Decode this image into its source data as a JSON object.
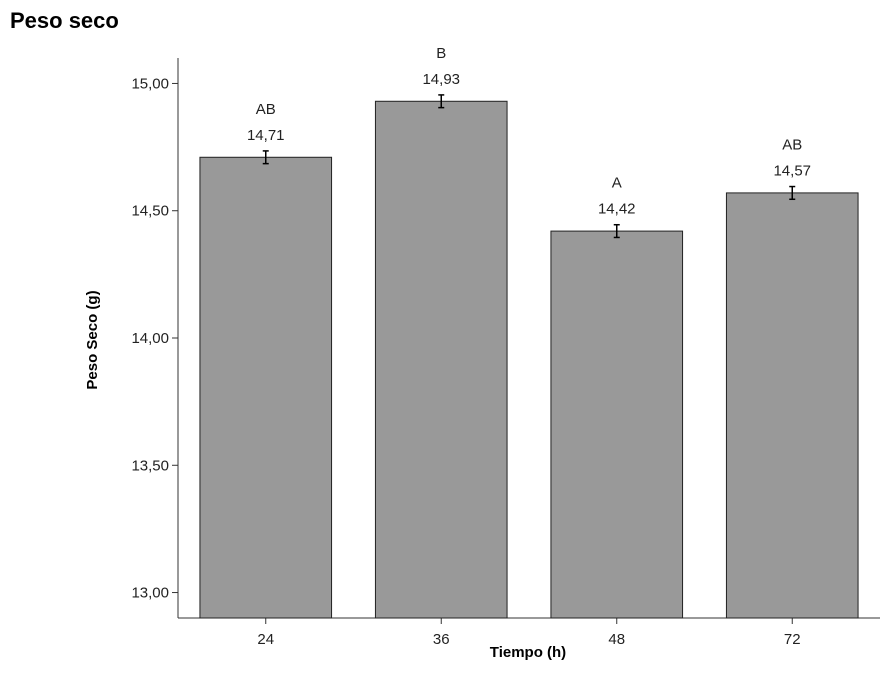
{
  "page_title": "Peso seco",
  "chart_data": {
    "type": "bar",
    "categories": [
      "24",
      "36",
      "48",
      "72"
    ],
    "values": [
      14.71,
      14.93,
      14.42,
      14.57
    ],
    "value_labels": [
      "14,71",
      "14,93",
      "14,42",
      "14,57"
    ],
    "group_letters": [
      "AB",
      "B",
      "A",
      "AB"
    ],
    "error_half_range": [
      0.025,
      0.025,
      0.025,
      0.025
    ],
    "xlabel": "Tiempo (h)",
    "ylabel": "Peso Seco (g)",
    "ylim": [
      12.9,
      15.1
    ],
    "yticks": [
      13.0,
      13.5,
      14.0,
      14.5,
      15.0
    ],
    "ytick_labels": [
      "13,00",
      "13,50",
      "14,00",
      "14,50",
      "15,00"
    ],
    "bar_color": "#999999",
    "bar_edge_color": "#222222",
    "grid": false,
    "legend": "none"
  }
}
